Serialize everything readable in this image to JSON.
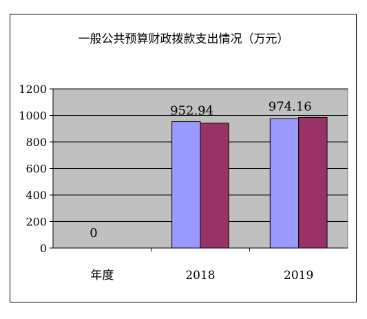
{
  "chart_data": {
    "type": "bar",
    "title": "一般公共预算财政拨款支出情况（万元）",
    "categories": [
      "年度",
      "2018",
      "2019"
    ],
    "series": [
      {
        "values": [
          0,
          952.94,
          974.16
        ],
        "color": "#9999ff"
      },
      {
        "values": [
          0,
          942,
          985
        ],
        "color": "#993366"
      }
    ],
    "data_labels": [
      "0",
      "952.94",
      "974.16"
    ],
    "ylim": [
      0,
      1200
    ],
    "yticks": [
      0,
      200,
      400,
      600,
      800,
      1000,
      1200
    ],
    "grid": true,
    "plot_background": "#c0c0c0",
    "legend": "none"
  }
}
